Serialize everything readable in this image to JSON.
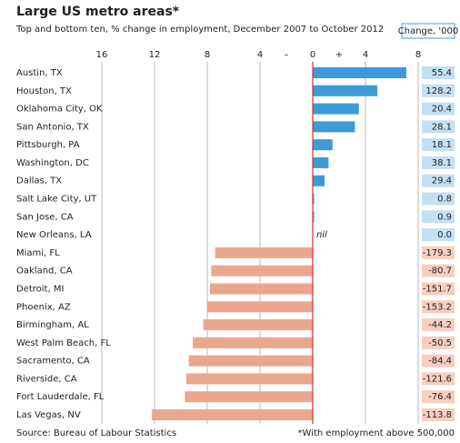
{
  "chart_data": {
    "type": "bar",
    "title": "Large US metro areas*",
    "subtitle": "Top and bottom ten, % change in employment, December 2007 to October 2012",
    "source": "Source: Bureau of Labour Statistics",
    "footnote": "*With employment above 500,000",
    "sign_labels": {
      "negative": "–",
      "positive": "+"
    },
    "categories": [
      "Austin, TX",
      "Houston, TX",
      "Oklahoma City, OK",
      "San Antonio, TX",
      "Pittsburgh, PA",
      "Washington, DC",
      "Dallas, TX",
      "Salt Lake City, UT",
      "San Jose, CA",
      "New Orleans, LA",
      "Miami, FL",
      "Oakland, CA",
      "Detroit, MI",
      "Phoenix, AZ",
      "Birmingham, AL",
      "West Palm Beach, FL",
      "Sacramento, CA",
      "Riverside, CA",
      "Fort Lauderdale, FL",
      "Las Vegas, NV"
    ],
    "values": [
      7.1,
      4.9,
      3.5,
      3.2,
      1.5,
      1.2,
      0.9,
      0.1,
      0.1,
      0,
      -7.4,
      -7.7,
      -7.8,
      -8.0,
      -8.3,
      -9.1,
      -9.4,
      -9.6,
      -9.7,
      -12.2
    ],
    "value_labels": [
      null,
      null,
      null,
      null,
      null,
      null,
      null,
      null,
      null,
      "nil",
      null,
      null,
      null,
      null,
      null,
      null,
      null,
      null,
      null,
      null
    ],
    "change": {
      "header": "Change, '000",
      "values": [
        55.4,
        128.2,
        20.4,
        28.1,
        18.1,
        38.1,
        29.4,
        0.8,
        0.9,
        {
          "value": 0,
          "label": "0.0"
        },
        -179.3,
        -80.7,
        -151.7,
        -153.2,
        -44.2,
        -50.5,
        -84.4,
        -121.6,
        -76.4,
        -113.8
      ]
    },
    "colors": {
      "positive": "#3d9ad8",
      "negative": "#eba78d",
      "positive_text": "#1d5b88",
      "negative_text": "#8a3a1c",
      "positive_box": "#c3e1f3",
      "negative_box": "#f6cfc0",
      "zero_line": "#d0342c"
    },
    "xlim": [
      -16,
      8
    ],
    "xticks": [
      {
        "value": -16,
        "label": "16"
      },
      {
        "value": -12,
        "label": "12"
      },
      {
        "value": -8,
        "label": "8"
      },
      {
        "value": -4,
        "label": "4"
      },
      0,
      4,
      8
    ],
    "grid": true
  }
}
